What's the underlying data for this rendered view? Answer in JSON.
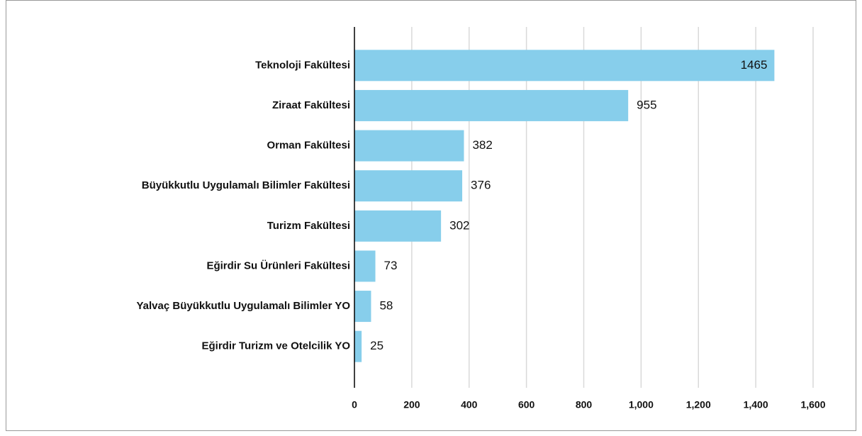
{
  "chart_data": {
    "type": "bar",
    "orientation": "horizontal",
    "categories": [
      "Teknoloji Fakültesi",
      "Ziraat Fakültesi",
      "Orman Fakültesi",
      "Büyükkutlu Uygulamalı Bilimler Fakültesi",
      "Turizm Fakültesi",
      "Eğirdir Su Ürünleri Fakültesi",
      "Yalvaç Büyükkutlu Uygulamalı Bilimler YO",
      "Eğirdir Turizm ve Otelcilik YO"
    ],
    "values": [
      1465,
      955,
      382,
      376,
      302,
      73,
      58,
      25
    ],
    "color": "#87ceeb",
    "xlim": [
      0,
      1600
    ],
    "xticks": [
      0,
      200,
      400,
      600,
      800,
      {
        "value": 1000,
        "label": "1,000"
      },
      {
        "value": 1200,
        "label": "1,200"
      },
      {
        "value": 1400,
        "label": "1,400"
      },
      {
        "value": 1600,
        "label": "1,600"
      }
    ],
    "grid": true
  }
}
